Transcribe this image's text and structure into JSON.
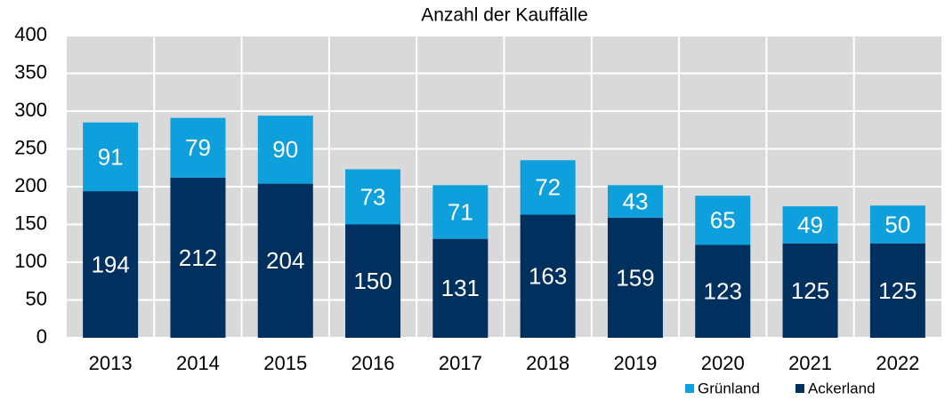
{
  "chart_data": {
    "type": "stacked_bar",
    "title": "Anzahl der Kauffälle",
    "categories": [
      "2013",
      "2014",
      "2015",
      "2016",
      "2017",
      "2018",
      "2019",
      "2020",
      "2021",
      "2022"
    ],
    "series": [
      {
        "name": "Ackerland",
        "color": "#00305e",
        "values": [
          194,
          212,
          204,
          150,
          131,
          163,
          159,
          123,
          125,
          125
        ]
      },
      {
        "name": "Grünland",
        "color": "#0ea0dc",
        "values": [
          91,
          79,
          90,
          73,
          71,
          72,
          43,
          65,
          49,
          50
        ]
      }
    ],
    "ylim": [
      0,
      400
    ],
    "yticks": [
      0,
      50,
      100,
      150,
      200,
      250,
      300,
      350,
      400
    ],
    "grid": true,
    "legend": "bottom-right"
  }
}
